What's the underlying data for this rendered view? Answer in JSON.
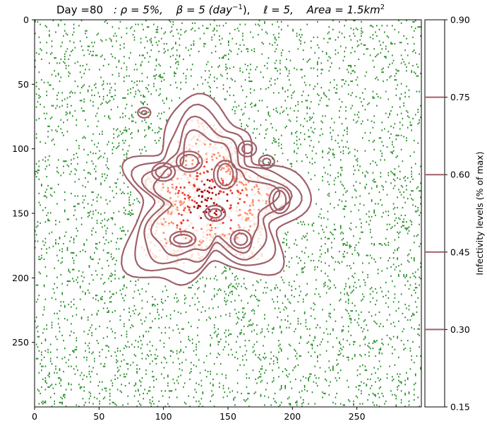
{
  "chart_data": {
    "type": "heatmap",
    "title": {
      "day": "Day =80",
      "rho": ": ρ = 5%,",
      "beta": "β = 5 (day",
      "beta_exp": "−1",
      "beta_close": "),",
      "ell": "ℓ = 5,",
      "area": "Area = 1.5km",
      "area_exp": "2"
    },
    "xlim": [
      0,
      300
    ],
    "ylim": [
      300,
      0
    ],
    "xticks": [
      0,
      50,
      100,
      150,
      200,
      250
    ],
    "yticks": [
      0,
      50,
      100,
      150,
      200,
      250
    ],
    "background_points": {
      "color": "#228b22",
      "density": 0.05
    },
    "infected_cluster": {
      "center": [
        135,
        140
      ],
      "colormap": [
        "#fee0d2",
        "#fc9272",
        "#ef3b2c",
        "#a50f15"
      ]
    },
    "contours": {
      "color": "#a0606a",
      "levels": [
        0.15,
        0.3,
        0.45,
        0.6,
        0.75,
        0.9
      ]
    },
    "colorbar": {
      "label": "Infectivity levels   (% of max)",
      "ticks": [
        "0.90",
        "0.75",
        "0.60",
        "0.45",
        "0.30",
        "0.15"
      ],
      "values": [
        0.9,
        0.75,
        0.6,
        0.45,
        0.3,
        0.15
      ],
      "range": [
        0.15,
        0.9
      ]
    }
  }
}
